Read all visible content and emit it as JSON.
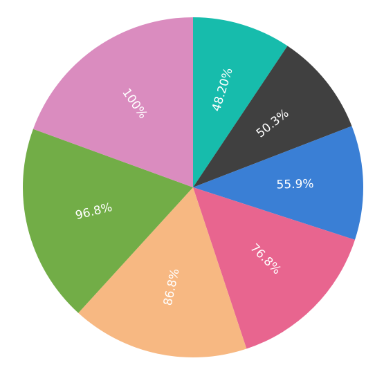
{
  "chart_data": {
    "type": "pie",
    "values": [
      48.2,
      50.3,
      55.9,
      76.8,
      86.8,
      96.8,
      100
    ],
    "value_labels": [
      "48.20%",
      "50.3%",
      "55.9%",
      "76.8%",
      "86.8%",
      "96.8%",
      "100%"
    ],
    "colors": [
      "#17bcac",
      "#404040",
      "#3a7fd5",
      "#e8658f",
      "#f7b882",
      "#72ad47",
      "#da8cbf"
    ]
  }
}
